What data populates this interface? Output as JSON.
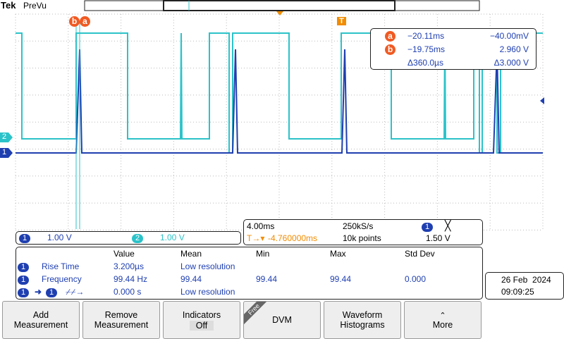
{
  "header": {
    "brand": "Tek",
    "mode": "PreVu"
  },
  "cursor_markers": [
    "b",
    "a"
  ],
  "trigger_marker": "T",
  "channel_markers": [
    "2",
    "1"
  ],
  "cursor_readout": {
    "rows": [
      [
        "a",
        "−20.11ms",
        "−40.00mV"
      ],
      [
        "b",
        "−19.75ms",
        "2.960 V"
      ]
    ],
    "delta": [
      "Δ360.0µs",
      "Δ3.000 V"
    ]
  },
  "channels": [
    {
      "id": "1",
      "scale": "1.00 V"
    },
    {
      "id": "2",
      "scale": "1.00 V"
    }
  ],
  "timebase": {
    "scale": "4.00ms",
    "sample_rate": "250kS/s",
    "trigger_source": "1",
    "trigger_delay": "-4.760000ms",
    "record_length": "10k points",
    "trigger_level": "1.50 V"
  },
  "measurements": {
    "headers": [
      "Value",
      "Mean",
      "Min",
      "Max",
      "Std Dev"
    ],
    "rows": [
      {
        "source": "1",
        "name": "Rise Time",
        "value": "3.200µs",
        "mean": "Low resolution"
      },
      {
        "source": "1",
        "name": "Frequency",
        "value": "99.44 Hz",
        "mean": "99.44",
        "min": "99.44",
        "max": "99.44",
        "std_dev": "0.000"
      },
      {
        "source": "1",
        "target": "1",
        "value": "0.000 s",
        "mean": "Low resolution"
      }
    ]
  },
  "datetime": {
    "date": "26 Feb  2024",
    "time": "09:09:25"
  },
  "buttons": [
    {
      "lines": [
        "Add",
        "Measurement"
      ]
    },
    {
      "lines": [
        "Remove",
        "Measurement"
      ]
    },
    {
      "lines": [
        "Indicators",
        "Off"
      ]
    },
    {
      "tag": "Free",
      "lines": [
        "DVM"
      ]
    },
    {
      "lines": [
        "Waveform",
        "Histograms"
      ]
    },
    {
      "lines": [
        "More"
      ]
    }
  ]
}
